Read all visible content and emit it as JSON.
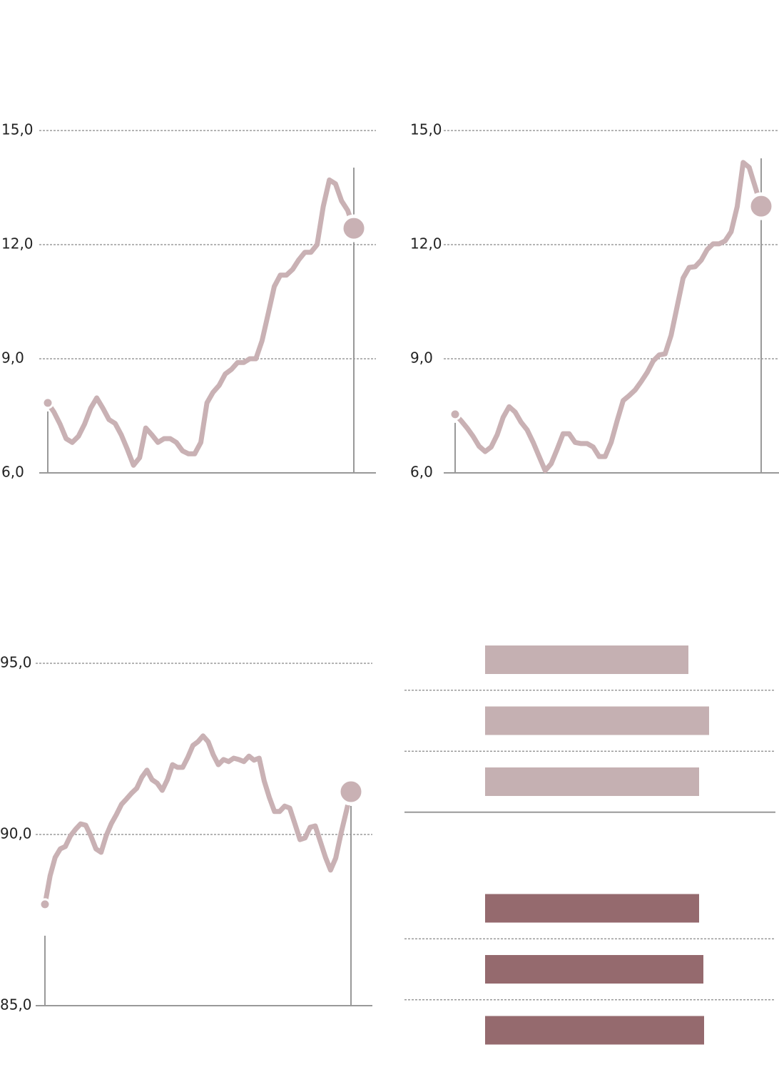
{
  "chart_data": [
    {
      "type": "line",
      "color": "#c9b1b4",
      "ylim": [
        6,
        15
      ],
      "yticks": [
        {
          "value": 6,
          "label": "6,0"
        },
        {
          "value": 9,
          "label": "9,0"
        },
        {
          "value": 12,
          "label": "12,0"
        },
        {
          "value": 15,
          "label": "15,0"
        }
      ],
      "values": [
        7.84,
        7.6,
        7.28,
        6.9,
        6.8,
        6.96,
        7.28,
        7.7,
        7.97,
        7.7,
        7.4,
        7.3,
        7.0,
        6.62,
        6.2,
        6.4,
        7.18,
        7.0,
        6.8,
        6.9,
        6.9,
        6.8,
        6.58,
        6.5,
        6.5,
        6.8,
        7.84,
        8.12,
        8.3,
        8.6,
        8.72,
        8.9,
        8.9,
        9.0,
        9.0,
        9.47,
        10.18,
        10.9,
        11.2,
        11.2,
        11.35,
        11.6,
        11.8,
        11.8,
        12.0,
        13.0,
        13.7,
        13.6,
        13.15,
        12.9,
        12.43
      ]
    },
    {
      "type": "line",
      "color": "#c9b1b4",
      "ylim": [
        6,
        15
      ],
      "yticks": [
        {
          "value": 6,
          "label": "6,0"
        },
        {
          "value": 9,
          "label": "9,0"
        },
        {
          "value": 12,
          "label": "12,0"
        },
        {
          "value": 15,
          "label": "15,0"
        }
      ],
      "values": [
        7.54,
        7.37,
        7.18,
        6.96,
        6.7,
        6.56,
        6.68,
        7.0,
        7.46,
        7.74,
        7.6,
        7.33,
        7.13,
        6.8,
        6.43,
        6.06,
        6.24,
        6.62,
        7.03,
        7.03,
        6.8,
        6.77,
        6.77,
        6.68,
        6.43,
        6.43,
        6.8,
        7.37,
        7.9,
        8.03,
        8.18,
        8.4,
        8.64,
        8.94,
        9.1,
        9.13,
        9.62,
        10.37,
        11.12,
        11.4,
        11.42,
        11.59,
        11.87,
        12.02,
        12.02,
        12.1,
        12.34,
        13.0,
        14.16,
        14.03,
        13.52,
        13.01
      ]
    },
    {
      "type": "line",
      "color": "#c9b1b4",
      "ylim": [
        85,
        95
      ],
      "yticks": [
        {
          "value": 85,
          "label": "85,0"
        },
        {
          "value": 90,
          "label": "90,0"
        },
        {
          "value": 95,
          "label": "95,0"
        }
      ],
      "values": [
        87.96,
        88.79,
        89.33,
        89.58,
        89.65,
        89.96,
        90.15,
        90.31,
        90.27,
        89.96,
        89.58,
        89.48,
        89.96,
        90.31,
        90.58,
        90.88,
        91.04,
        91.21,
        91.35,
        91.67,
        91.88,
        91.6,
        91.5,
        91.29,
        91.6,
        92.04,
        91.96,
        91.96,
        92.25,
        92.6,
        92.71,
        92.88,
        92.71,
        92.33,
        92.04,
        92.19,
        92.13,
        92.23,
        92.19,
        92.13,
        92.29,
        92.17,
        92.23,
        91.56,
        91.08,
        90.67,
        90.67,
        90.83,
        90.77,
        90.31,
        89.85,
        89.9,
        90.21,
        90.25,
        89.79,
        89.33,
        88.96,
        89.31,
        90.0,
        90.63,
        91.25
      ]
    },
    {
      "type": "hbar",
      "xlim": [
        0,
        407
      ],
      "categories": [
        null,
        null,
        null
      ],
      "series": [
        {
          "color": "#c5b0b2",
          "values": [
            285,
            314,
            300
          ]
        },
        {
          "color": "#956a6e",
          "values": [
            300,
            306,
            307
          ]
        }
      ]
    }
  ]
}
